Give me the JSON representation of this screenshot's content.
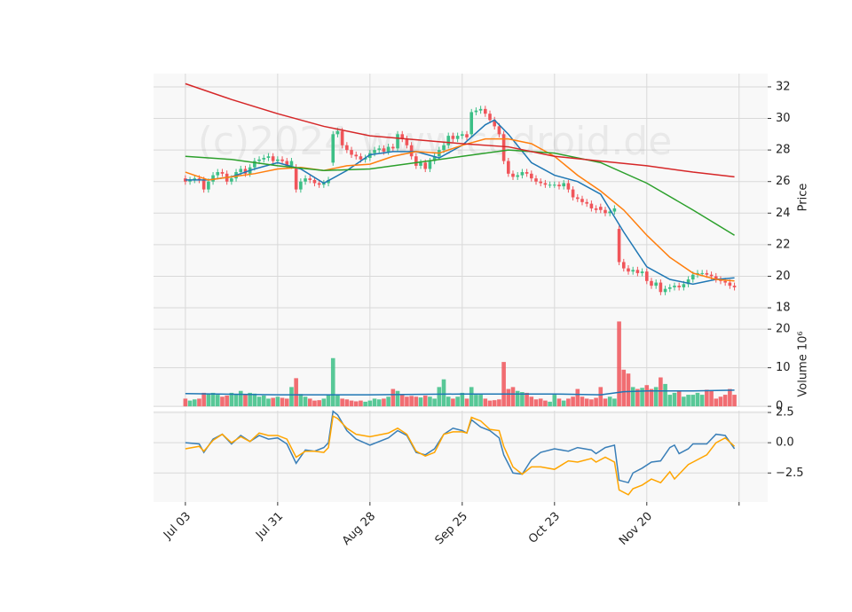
{
  "chart_data": [
    {
      "type": "candlestick",
      "ylabel": "Price",
      "watermark": "(c)2024 www.codroid.de",
      "up_color": "#3cbf86",
      "down_color": "#f0555a",
      "ylim": [
        17.16,
        32.84
      ],
      "yticks": [
        18,
        20,
        22,
        24,
        26,
        28,
        30,
        32
      ],
      "grid": true,
      "open": [
        26.2,
        26.0,
        26.1,
        26.2,
        26.1,
        25.5,
        26.0,
        26.4,
        26.6,
        26.5,
        26.0,
        26.2,
        26.6,
        26.8,
        26.5,
        26.9,
        27.3,
        27.4,
        27.5,
        27.6,
        27.3,
        27.4,
        27.3,
        27.0,
        26.9,
        25.5,
        26.0,
        26.2,
        26.1,
        25.9,
        25.8,
        25.9,
        27.2,
        29.0,
        29.2,
        28.3,
        28.0,
        27.7,
        27.6,
        27.4,
        27.5,
        27.8,
        28.0,
        28.1,
        27.9,
        28.2,
        28.1,
        29.0,
        28.7,
        28.3,
        27.6,
        27.0,
        27.2,
        26.8,
        27.3,
        27.6,
        28.0,
        28.3,
        28.9,
        28.7,
        28.9,
        29.0,
        29.0,
        30.4,
        30.5,
        30.6,
        30.3,
        29.9,
        29.5,
        29.0,
        27.3,
        26.5,
        26.3,
        26.4,
        26.6,
        26.5,
        26.2,
        26.0,
        25.9,
        25.8,
        25.8,
        25.8,
        25.7,
        25.9,
        25.5,
        25.0,
        24.9,
        24.7,
        24.6,
        24.3,
        24.4,
        24.2,
        24.0,
        24.1,
        23.0,
        20.9,
        20.5,
        20.3,
        20.4,
        20.2,
        20.3,
        19.7,
        19.4,
        19.6,
        19.0,
        19.2,
        19.3,
        19.4,
        19.3,
        19.5,
        19.8,
        20.1,
        20.2,
        20.2,
        20.1,
        20.0,
        19.8,
        19.7,
        19.6,
        19.4
      ],
      "high": [
        26.4,
        26.3,
        26.4,
        26.4,
        26.3,
        26.2,
        26.6,
        26.8,
        26.8,
        26.7,
        26.4,
        26.8,
        27.0,
        27.0,
        27.1,
        27.5,
        27.6,
        27.7,
        27.8,
        27.8,
        27.6,
        27.6,
        27.5,
        27.5,
        27.1,
        26.2,
        26.4,
        26.4,
        26.3,
        26.1,
        26.1,
        26.3,
        29.2,
        29.4,
        29.4,
        28.5,
        28.2,
        27.9,
        27.8,
        27.7,
        28.0,
        28.2,
        28.3,
        28.3,
        28.4,
        28.4,
        29.2,
        29.2,
        28.9,
        28.5,
        27.8,
        27.4,
        27.4,
        27.5,
        27.8,
        28.2,
        28.5,
        29.1,
        29.1,
        29.1,
        29.2,
        29.2,
        30.6,
        30.7,
        30.8,
        30.8,
        30.5,
        30.1,
        29.7,
        29.2,
        27.5,
        26.7,
        26.6,
        26.8,
        26.8,
        26.7,
        26.4,
        26.2,
        26.1,
        26.0,
        26.0,
        26.0,
        26.1,
        26.1,
        25.7,
        25.2,
        25.1,
        24.9,
        24.8,
        24.5,
        24.6,
        24.4,
        24.3,
        24.5,
        23.2,
        21.1,
        20.7,
        20.6,
        20.6,
        20.5,
        20.5,
        19.9,
        19.8,
        19.8,
        19.4,
        19.5,
        19.6,
        19.6,
        19.7,
        20.0,
        20.3,
        20.4,
        20.4,
        20.4,
        20.3,
        20.2,
        20.0,
        19.9,
        19.8,
        19.6
      ],
      "low": [
        25.8,
        25.8,
        25.9,
        25.9,
        25.3,
        25.3,
        25.8,
        26.2,
        26.3,
        25.8,
        25.8,
        26.0,
        26.4,
        26.3,
        26.3,
        26.7,
        27.1,
        27.2,
        27.3,
        27.1,
        27.1,
        27.1,
        26.8,
        26.8,
        25.3,
        25.3,
        25.8,
        25.9,
        25.7,
        25.6,
        25.6,
        25.7,
        27.0,
        28.8,
        28.1,
        27.8,
        27.5,
        27.4,
        27.2,
        27.2,
        27.3,
        27.6,
        27.8,
        27.7,
        27.7,
        27.9,
        27.9,
        28.5,
        28.1,
        27.4,
        26.8,
        26.8,
        26.6,
        26.6,
        27.1,
        27.4,
        27.8,
        28.1,
        28.5,
        28.5,
        28.7,
        28.6,
        28.8,
        30.2,
        30.3,
        30.1,
        29.7,
        29.3,
        28.8,
        27.1,
        26.3,
        26.1,
        26.1,
        26.2,
        26.3,
        26.0,
        25.8,
        25.7,
        25.6,
        25.6,
        25.6,
        25.5,
        25.5,
        25.3,
        24.8,
        24.7,
        24.5,
        24.4,
        24.1,
        24.0,
        24.0,
        23.8,
        23.8,
        23.9,
        20.7,
        20.3,
        20.1,
        20.1,
        20.0,
        20.0,
        19.5,
        19.2,
        19.2,
        18.8,
        18.8,
        19.0,
        19.1,
        19.1,
        19.1,
        19.3,
        19.6,
        19.9,
        20.0,
        19.9,
        19.8,
        19.6,
        19.5,
        19.4,
        19.2,
        19.1
      ],
      "close": [
        26.0,
        26.1,
        26.2,
        26.1,
        25.5,
        26.0,
        26.4,
        26.6,
        26.5,
        26.0,
        26.2,
        26.6,
        26.8,
        26.5,
        26.9,
        27.3,
        27.4,
        27.5,
        27.6,
        27.3,
        27.4,
        27.3,
        27.0,
        27.3,
        25.5,
        26.0,
        26.2,
        26.1,
        25.9,
        25.8,
        25.9,
        26.1,
        29.0,
        29.2,
        28.3,
        28.0,
        27.7,
        27.6,
        27.4,
        27.5,
        27.8,
        28.0,
        28.1,
        27.9,
        28.2,
        28.1,
        29.0,
        28.7,
        28.3,
        27.6,
        27.0,
        27.2,
        26.8,
        27.3,
        27.6,
        28.0,
        28.3,
        28.9,
        28.7,
        28.9,
        29.0,
        28.8,
        30.4,
        30.5,
        30.6,
        30.3,
        29.9,
        29.5,
        29.0,
        27.3,
        26.5,
        26.3,
        26.4,
        26.6,
        26.5,
        26.2,
        26.0,
        25.9,
        25.8,
        25.8,
        25.8,
        25.7,
        25.9,
        25.5,
        25.0,
        24.9,
        24.7,
        24.6,
        24.3,
        24.2,
        24.2,
        24.0,
        24.1,
        24.3,
        20.9,
        20.5,
        20.3,
        20.4,
        20.2,
        20.3,
        19.7,
        19.4,
        19.6,
        19.0,
        19.2,
        19.3,
        19.4,
        19.3,
        19.5,
        19.8,
        20.1,
        20.2,
        20.2,
        20.1,
        20.0,
        19.8,
        19.7,
        19.6,
        19.4,
        19.3
      ],
      "lines": [
        {
          "color": "#1f77b4",
          "x": [
            0,
            5,
            10,
            15,
            20,
            25,
            30,
            35,
            40,
            45,
            50,
            55,
            60,
            65,
            67,
            70,
            75,
            80,
            85,
            90,
            95,
            100,
            105,
            110,
            115,
            119
          ],
          "values": [
            26.1,
            26.1,
            26.3,
            26.8,
            27.2,
            26.8,
            25.9,
            26.7,
            27.7,
            27.9,
            27.9,
            27.5,
            28.3,
            29.6,
            29.9,
            29.0,
            27.2,
            26.4,
            26.0,
            25.2,
            22.8,
            20.6,
            19.8,
            19.5,
            19.8,
            19.9
          ]
        },
        {
          "color": "#ff7f0e",
          "x": [
            0,
            5,
            10,
            15,
            20,
            25,
            30,
            35,
            40,
            45,
            50,
            55,
            60,
            65,
            70,
            75,
            80,
            85,
            90,
            95,
            100,
            105,
            110,
            115,
            119
          ],
          "values": [
            26.6,
            26.1,
            26.3,
            26.5,
            26.8,
            26.9,
            26.7,
            27.0,
            27.1,
            27.6,
            27.9,
            27.8,
            28.3,
            28.7,
            28.7,
            28.4,
            27.6,
            26.4,
            25.4,
            24.2,
            22.6,
            21.2,
            20.2,
            19.8,
            19.7
          ]
        },
        {
          "color": "#2ca02c",
          "x": [
            0,
            10,
            20,
            30,
            40,
            50,
            60,
            70,
            80,
            90,
            100,
            110,
            119
          ],
          "values": [
            27.6,
            27.4,
            27.0,
            26.7,
            26.8,
            27.2,
            27.6,
            28.0,
            27.8,
            27.2,
            25.9,
            24.2,
            22.6
          ]
        },
        {
          "color": "#d62728",
          "x": [
            0,
            10,
            20,
            30,
            40,
            60,
            70,
            80,
            90,
            100,
            110,
            119
          ],
          "values": [
            32.2,
            31.2,
            30.3,
            29.5,
            28.9,
            28.4,
            28.2,
            27.6,
            27.3,
            27.0,
            26.6,
            26.3
          ]
        }
      ]
    },
    {
      "type": "volume",
      "ylabel": "Volume  10⁶",
      "ylim": [
        -0.2,
        22.1
      ],
      "yticks": [
        0,
        10,
        20
      ],
      "grid": true,
      "values": [
        2,
        1.5,
        1.8,
        2,
        3.5,
        3.2,
        3.5,
        3,
        2.5,
        2.8,
        3.5,
        3.2,
        4,
        3,
        3.5,
        3.3,
        2.5,
        2.8,
        2,
        2.2,
        2.5,
        2.2,
        2,
        5,
        7.3,
        3.2,
        2.5,
        2,
        1.5,
        1.6,
        2,
        3,
        12.5,
        3,
        2,
        1.8,
        1.5,
        1.3,
        1.5,
        1.2,
        1.5,
        2,
        1.8,
        2,
        2.5,
        4.5,
        4,
        3,
        2.5,
        2.7,
        2.5,
        2.3,
        2.8,
        2.5,
        2,
        5,
        7,
        2.5,
        2,
        2.5,
        3.5,
        2,
        5,
        3,
        3,
        2,
        1.5,
        1.6,
        1.8,
        11.5,
        4.5,
        5,
        4,
        3.7,
        3.5,
        2.5,
        1.8,
        2,
        1.5,
        1.2,
        3,
        2,
        1.5,
        2,
        2.5,
        4.5,
        2.5,
        2,
        1.8,
        2.2,
        5,
        2,
        2.5,
        2,
        22,
        9.5,
        8.5,
        5,
        4.5,
        4.8,
        5.5,
        4.5,
        5,
        7.5,
        5.8,
        3,
        3.5,
        4,
        2.5,
        3,
        3,
        3.5,
        3,
        4.3,
        4,
        2,
        2.5,
        3,
        4.5,
        3
      ],
      "lines": [
        {
          "color": "#1f77b4",
          "x": [
            0,
            20,
            40,
            60,
            80,
            90,
            95,
            100,
            110,
            119
          ],
          "values": [
            3.3,
            3.0,
            3.0,
            3.2,
            3.2,
            3.0,
            3.8,
            4.0,
            4.0,
            4.2
          ]
        }
      ]
    },
    {
      "type": "line",
      "ylim": [
        -4.9,
        2.65
      ],
      "yticks": [
        {
          "value": -2.5,
          "label": "−2.5"
        },
        {
          "value": 0,
          "label": "0.0"
        },
        2.5
      ],
      "grid": true,
      "xlim": [
        -6.9,
        126.2
      ],
      "xticks": [
        {
          "value": 0,
          "label": "Jul 03"
        },
        {
          "value": 20,
          "label": "Jul 31"
        },
        {
          "value": 40,
          "label": "Aug 28"
        },
        {
          "value": 60,
          "label": "Sep 25"
        },
        {
          "value": 80,
          "label": "Oct 23"
        },
        {
          "value": 100,
          "label": "Nov 20"
        },
        {
          "value": 120,
          "label": null
        }
      ],
      "x": [
        0,
        3,
        4,
        6,
        8,
        10,
        12,
        14,
        16,
        18,
        20,
        22,
        24,
        26,
        28,
        30,
        31,
        32,
        33,
        35,
        37,
        40,
        44,
        46,
        48,
        50,
        52,
        54,
        56,
        58,
        60,
        61,
        62,
        64,
        66,
        68,
        69,
        71,
        73,
        75,
        77,
        80,
        83,
        85,
        88,
        89,
        91,
        93,
        94,
        96,
        97,
        99,
        101,
        103,
        105,
        106,
        107,
        109,
        110,
        113,
        115,
        117,
        119
      ],
      "lines": [
        {
          "color": "#3a7fb8",
          "values": [
            0.0,
            -0.1,
            -0.8,
            0.3,
            0.7,
            -0.1,
            0.6,
            0.1,
            0.6,
            0.3,
            0.4,
            -0.1,
            -1.7,
            -0.6,
            -0.7,
            -0.4,
            0,
            2.6,
            2.3,
            1.0,
            0.3,
            -0.2,
            0.4,
            1.0,
            0.6,
            -0.8,
            -1.0,
            -0.5,
            0.7,
            1.2,
            1.0,
            0.8,
            1.9,
            1.3,
            1.0,
            0.4,
            -1.0,
            -2.5,
            -2.6,
            -1.4,
            -0.8,
            -0.5,
            -0.7,
            -0.4,
            -0.6,
            -0.9,
            -0.4,
            -0.2,
            -3.1,
            -3.3,
            -2.5,
            -2.1,
            -1.6,
            -1.5,
            -0.4,
            -0.2,
            -0.9,
            -0.5,
            -0.1,
            -0.1,
            0.7,
            0.6,
            -0.5
          ]
        },
        {
          "color": "#ffa500",
          "values": [
            -0.5,
            -0.3,
            -0.7,
            0.2,
            0.7,
            0,
            0.5,
            0.1,
            0.8,
            0.6,
            0.6,
            0.3,
            -1.2,
            -0.7,
            -0.7,
            -0.8,
            -0.4,
            2.2,
            2.0,
            1.2,
            0.7,
            0.5,
            0.8,
            1.2,
            0.7,
            -0.7,
            -1.1,
            -0.8,
            0.7,
            0.9,
            0.9,
            0.8,
            2.1,
            1.8,
            1.1,
            1.0,
            -0.3,
            -2.0,
            -2.6,
            -2.0,
            -2.0,
            -2.2,
            -1.5,
            -1.6,
            -1.3,
            -1.6,
            -1.2,
            -1.6,
            -3.9,
            -4.3,
            -3.8,
            -3.5,
            -3.0,
            -3.3,
            -2.4,
            -3.0,
            -2.6,
            -1.8,
            -1.6,
            -1.0,
            0.0,
            0.4,
            -0.3
          ]
        }
      ]
    }
  ]
}
